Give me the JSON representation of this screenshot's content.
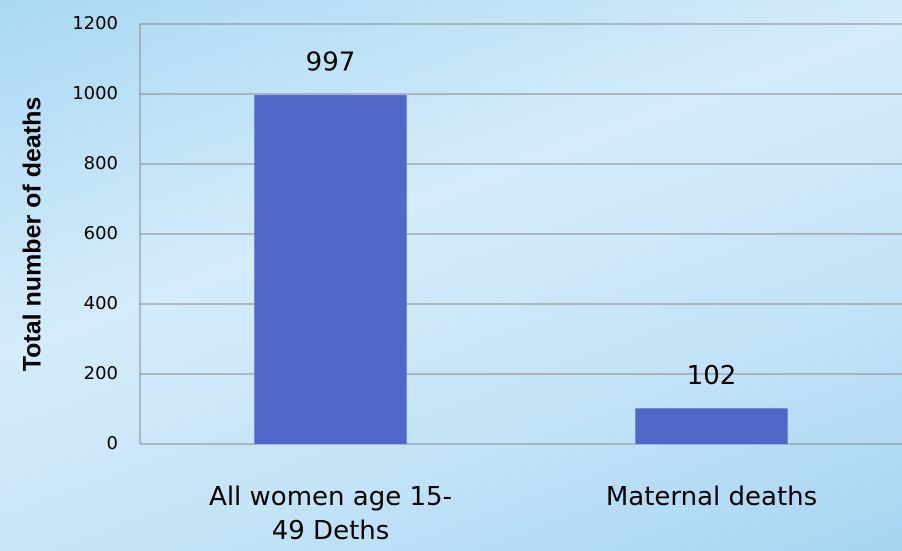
{
  "chart_data": {
    "type": "bar",
    "y_axis_label": "Total number of deaths",
    "categories": [
      "All women age 15-49 Deths",
      "Maternal deaths"
    ],
    "values": [
      997,
      102
    ],
    "color": "#4f67c9",
    "ylim": [
      0,
      1200
    ],
    "yticks": [
      0,
      200,
      400,
      600,
      800,
      1000,
      1200
    ],
    "grid": true
  }
}
